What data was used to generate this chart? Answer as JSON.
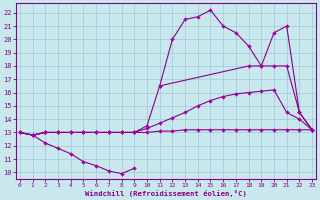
{
  "bg_color": "#c8e8ee",
  "grid_color": "#a0c8d8",
  "line_color": "#880088",
  "marker_color": "#aa00aa",
  "xlim": [
    -0.3,
    23.3
  ],
  "ylim": [
    9.5,
    22.7
  ],
  "xticks": [
    0,
    1,
    2,
    3,
    4,
    5,
    6,
    7,
    8,
    9,
    10,
    11,
    12,
    13,
    14,
    15,
    16,
    17,
    18,
    19,
    20,
    21,
    22,
    23
  ],
  "yticks": [
    10,
    11,
    12,
    13,
    14,
    15,
    16,
    17,
    18,
    19,
    20,
    21,
    22
  ],
  "xlabel": "Windchill (Refroidissement éolien,°C)",
  "series": [
    {
      "x": [
        0,
        1,
        2,
        3,
        4,
        5,
        6,
        7,
        8,
        9
      ],
      "y": [
        13.0,
        12.8,
        12.2,
        11.8,
        11.4,
        10.8,
        10.5,
        10.1,
        9.9,
        10.3
      ]
    },
    {
      "x": [
        0,
        1,
        2,
        3,
        4,
        5,
        6,
        7,
        8,
        9,
        10,
        11,
        12,
        13,
        14,
        15,
        16,
        17,
        18,
        19,
        20,
        21,
        22,
        23
      ],
      "y": [
        13.0,
        12.8,
        13.0,
        13.0,
        13.0,
        13.0,
        13.0,
        13.0,
        13.0,
        13.0,
        13.0,
        13.1,
        13.1,
        13.2,
        13.2,
        13.2,
        13.2,
        13.2,
        13.2,
        13.2,
        13.2,
        13.2,
        13.2,
        13.2
      ]
    },
    {
      "x": [
        0,
        1,
        2,
        3,
        4,
        5,
        6,
        7,
        8,
        9,
        10,
        11,
        12,
        13,
        14,
        15,
        16,
        17,
        18,
        19,
        20,
        21,
        22,
        23
      ],
      "y": [
        13.0,
        12.8,
        13.0,
        13.0,
        13.0,
        13.0,
        13.0,
        13.0,
        13.0,
        13.0,
        13.3,
        13.7,
        14.1,
        14.5,
        15.0,
        15.4,
        15.7,
        15.9,
        16.0,
        16.1,
        16.2,
        14.5,
        14.0,
        13.2
      ]
    },
    {
      "x": [
        0,
        1,
        2,
        3,
        4,
        5,
        6,
        7,
        8,
        9,
        10,
        11,
        18,
        19,
        20,
        21,
        22,
        23
      ],
      "y": [
        13.0,
        12.8,
        13.0,
        13.0,
        13.0,
        13.0,
        13.0,
        13.0,
        13.0,
        13.0,
        13.5,
        16.5,
        18.0,
        18.0,
        18.0,
        18.0,
        14.5,
        13.2
      ]
    },
    {
      "x": [
        11,
        12,
        13,
        14,
        15,
        16,
        17,
        18,
        19,
        20,
        21,
        22,
        23
      ],
      "y": [
        16.5,
        20.0,
        21.5,
        21.7,
        22.2,
        21.0,
        20.5,
        19.5,
        18.0,
        20.5,
        21.0,
        14.5,
        13.2
      ]
    }
  ]
}
